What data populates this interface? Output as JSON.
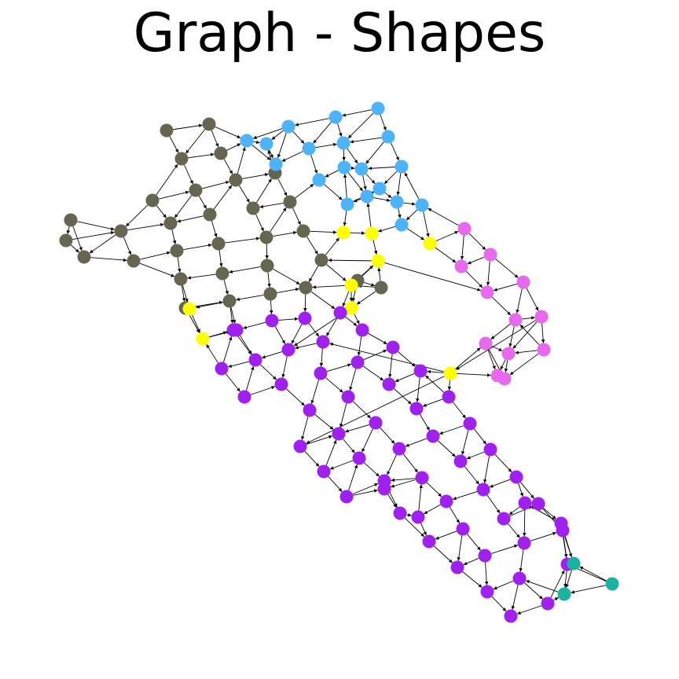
{
  "title": "Graph - Shapes",
  "colors": {
    "olive": "#656550",
    "blue": "#4db3ff",
    "yellow": "#ffff00",
    "pink": "#e868ee",
    "purple": "#a020f0",
    "teal": "#1ab3a0",
    "edge": "#000000",
    "background": "#ffffff"
  },
  "legend": []
}
